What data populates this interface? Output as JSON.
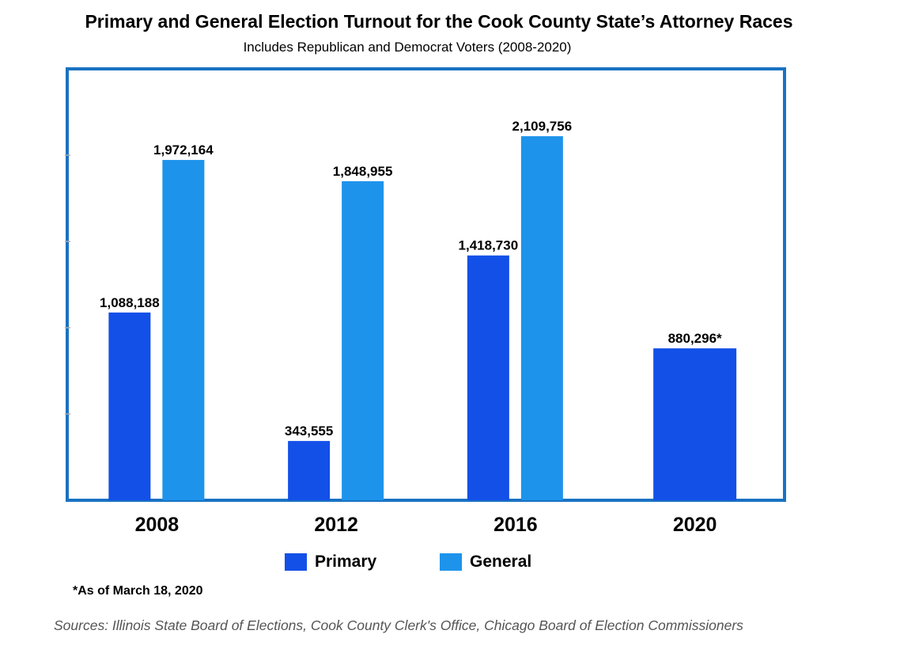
{
  "chart_data": {
    "type": "bar",
    "title": "Primary and General Election Turnout for the Cook County State’s Attorney Races",
    "subtitle": "Includes Republican and Democrat Voters (2008-2020)",
    "categories": [
      "2008",
      "2012",
      "2016",
      "2020"
    ],
    "series": [
      {
        "name": "Primary",
        "color": "#1350E8",
        "values": [
          1088188,
          343555,
          1418730,
          880296
        ],
        "labels": [
          "1,088,188",
          "343,555",
          "1,418,730",
          "880,296*"
        ]
      },
      {
        "name": "General",
        "color": "#1E93EB",
        "values": [
          1972164,
          1848955,
          2109756,
          null
        ],
        "labels": [
          "1,972,164",
          "1,848,955",
          "2,109,756",
          ""
        ]
      }
    ],
    "ylim": [
      0,
      2500000
    ],
    "frame_color": "#1A72C2",
    "legend": "bottom",
    "grid": false,
    "note": "*As of March 18, 2020",
    "source": "Sources: Illinois State Board of Elections, Cook County Clerk's Office, Chicago Board of Election Commissioners"
  }
}
